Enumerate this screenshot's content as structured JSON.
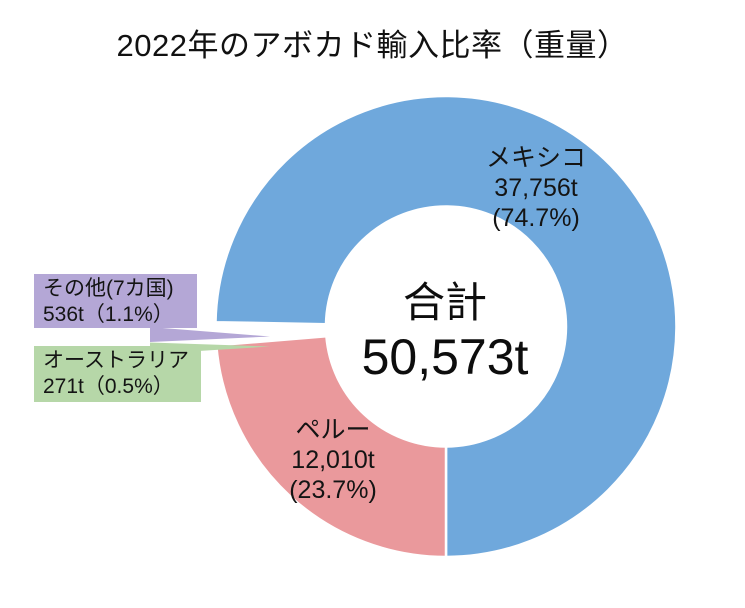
{
  "title": "2022年のアボカド輸入比率（重量）",
  "chart_data": {
    "type": "pie",
    "donut": true,
    "title": "2022年のアボカド輸入比率（重量）",
    "total": 50573,
    "total_label": "合計",
    "total_value": "50,573t",
    "unit": "t",
    "categories": [
      "メキシコ",
      "ペルー",
      "オーストラリア",
      "その他(7カ国)"
    ],
    "values": [
      37756,
      12010,
      271,
      536
    ],
    "series": [
      {
        "name": "メキシコ",
        "value": 37756,
        "pct": 74.7,
        "color": "#6fa8dc",
        "label_lines": [
          "メキシコ",
          "37,756t",
          "(74.7%)"
        ],
        "exploded": false
      },
      {
        "name": "ペルー",
        "value": 12010,
        "pct": 23.7,
        "color": "#ea999c",
        "label_lines": [
          "ペルー",
          "12,010t",
          "(23.7%)"
        ],
        "exploded": false
      },
      {
        "name": "オーストラリア",
        "value": 271,
        "pct": 0.5,
        "color": "#b6d7a8",
        "label_lines": [
          "オーストラリア",
          "271t（0.5%）"
        ],
        "exploded": true
      },
      {
        "name": "その他(7カ国)",
        "value": 536,
        "pct": 1.1,
        "color": "#b4a7d6",
        "label_lines": [
          "その他(7カ国)",
          "536t（1.1%）"
        ],
        "exploded": true
      }
    ],
    "legend": "none",
    "layout_hint": "donut starts/ends so Mexico runs clockwise from left side through top to bottom; Peru bottom-left; tiny slices pulled out to left callout boxes"
  },
  "colors": {
    "background": "#ffffff",
    "slice_border": "#ffffff",
    "text": "#111111"
  }
}
